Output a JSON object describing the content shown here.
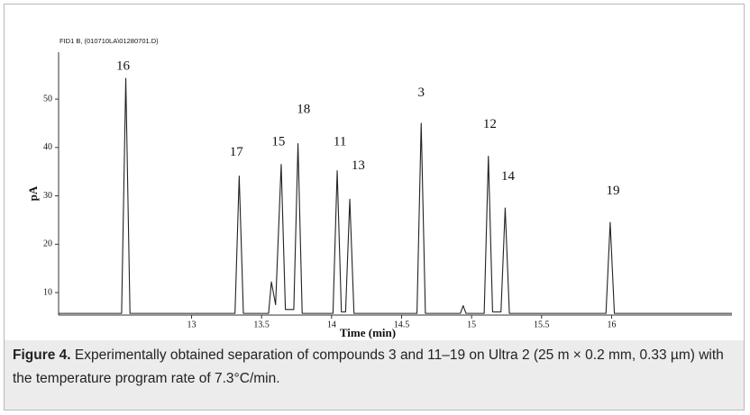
{
  "chart_data": {
    "type": "line",
    "source": "FID1 B, (010710LA\\01280701.D)",
    "xlabel": "Time (min)",
    "ylabel": "pA",
    "xlim": [
      12.05,
      16.86
    ],
    "ylim": [
      5.35,
      59.7
    ],
    "xticks": [
      13,
      13.5,
      14,
      14.5,
      15,
      15.5,
      16
    ],
    "yticks": [
      10,
      20,
      30,
      40,
      50
    ],
    "x": [
      12.05,
      12.5,
      12.53,
      12.56,
      13.31,
      13.34,
      13.37,
      13.55,
      13.57,
      13.6,
      13.64,
      13.67,
      13.73,
      13.76,
      13.79,
      14.01,
      14.04,
      14.07,
      14.1,
      14.13,
      14.16,
      14.61,
      14.64,
      14.67,
      14.92,
      14.94,
      14.96,
      15.09,
      15.12,
      15.15,
      15.21,
      15.24,
      15.27,
      15.96,
      15.99,
      16.02,
      16.86
    ],
    "values": [
      5.7,
      5.7,
      54.3,
      5.7,
      5.7,
      34.1,
      5.7,
      5.7,
      12.2,
      7.5,
      36.5,
      6.5,
      6.5,
      40.8,
      5.7,
      5.7,
      35.2,
      6,
      6,
      29.3,
      5.7,
      5.7,
      45,
      5.7,
      5.7,
      7.3,
      5.7,
      5.7,
      38.2,
      6,
      6,
      27.5,
      5.7,
      5.7,
      24.5,
      5.7,
      5.7
    ],
    "color": "#222222",
    "annotations": [
      {
        "text": "16",
        "x": 12.51,
        "y": 56.7
      },
      {
        "text": "17",
        "x": 13.32,
        "y": 38.9
      },
      {
        "text": "15",
        "x": 13.62,
        "y": 41.1
      },
      {
        "text": "18",
        "x": 13.8,
        "y": 47.8
      },
      {
        "text": "11",
        "x": 14.06,
        "y": 41.1
      },
      {
        "text": "13",
        "x": 14.19,
        "y": 36.1
      },
      {
        "text": "3",
        "x": 14.64,
        "y": 51.2
      },
      {
        "text": "12",
        "x": 15.13,
        "y": 44.7
      },
      {
        "text": "14",
        "x": 15.26,
        "y": 33.9
      },
      {
        "text": "19",
        "x": 16.01,
        "y": 30.9
      }
    ]
  },
  "caption": {
    "label": "Figure 4.",
    "text": " Experimentally obtained separation of compounds 3 and 11–19 on Ultra 2 (25 m × 0.2 mm, 0.33 µm) with the temperature program rate of 7.3°C/min."
  }
}
